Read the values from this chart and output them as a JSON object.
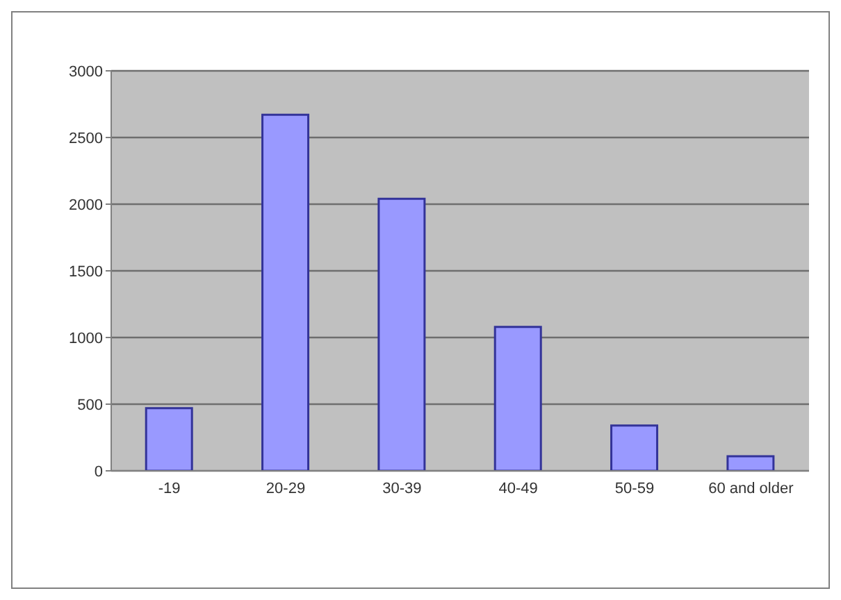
{
  "chart_data": {
    "type": "bar",
    "categories": [
      "-19",
      "20-29",
      "30-39",
      "40-49",
      "50-59",
      "60 and older"
    ],
    "values": [
      470,
      2670,
      2040,
      1080,
      340,
      110
    ],
    "color": "#9999ff",
    "ylim": [
      0,
      3000
    ],
    "yticks": [
      0,
      500,
      1000,
      1500,
      2000,
      2500,
      3000
    ],
    "grid": "y"
  }
}
